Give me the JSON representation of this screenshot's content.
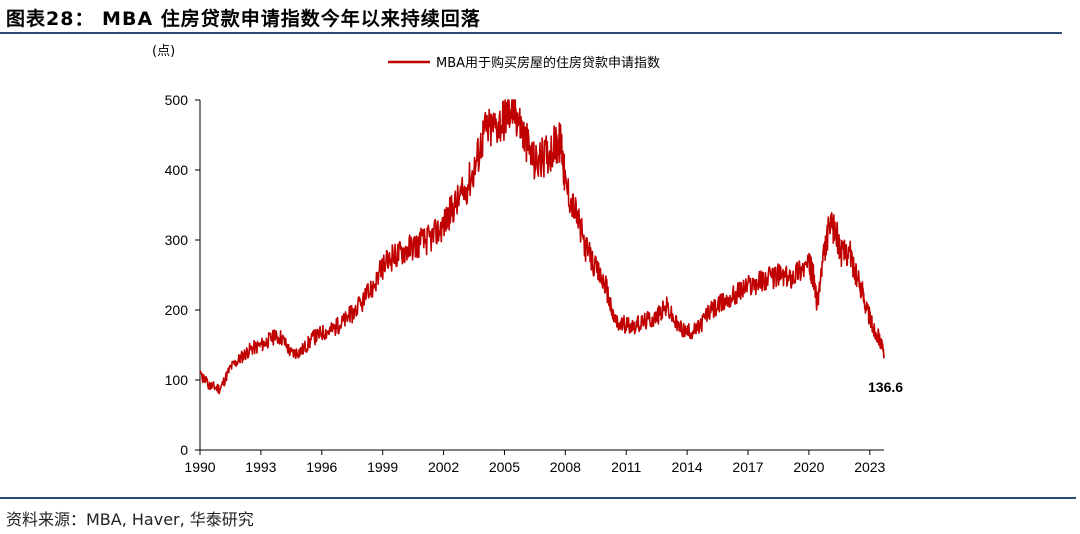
{
  "header": {
    "title": "图表28： MBA 住房贷款申请指数今年以来持续回落"
  },
  "footer": {
    "source": "资料来源：MBA, Haver, 华泰研究"
  },
  "chart_data": {
    "type": "line",
    "title": "",
    "unit_label": "(点)",
    "xlabel": "",
    "ylabel": "",
    "xlim": [
      1990,
      2023.7
    ],
    "ylim": [
      0,
      500
    ],
    "x_ticks": [
      "1990",
      "1993",
      "1996",
      "1999",
      "2002",
      "2005",
      "2008",
      "2011",
      "2014",
      "2017",
      "2020",
      "2023"
    ],
    "y_ticks": [
      "0",
      "100",
      "200",
      "300",
      "400",
      "500"
    ],
    "grid": false,
    "legend_position": "top-center",
    "series": [
      {
        "name": "MBA用于购买房屋的住房贷款申请指数",
        "color": "#c00000",
        "x": [
          1990.0,
          1990.5,
          1991.0,
          1991.5,
          1992.0,
          1992.5,
          1993.0,
          1993.5,
          1994.0,
          1994.5,
          1995.0,
          1995.5,
          1996.0,
          1996.5,
          1997.0,
          1997.5,
          1998.0,
          1998.5,
          1999.0,
          1999.5,
          2000.0,
          2000.5,
          2001.0,
          2001.5,
          2002.0,
          2002.5,
          2003.0,
          2003.5,
          2004.0,
          2004.5,
          2005.0,
          2005.3,
          2005.6,
          2006.0,
          2006.5,
          2007.0,
          2007.5,
          2007.8,
          2008.0,
          2008.5,
          2009.0,
          2009.5,
          2010.0,
          2010.3,
          2010.6,
          2011.0,
          2011.5,
          2012.0,
          2012.5,
          2013.0,
          2013.5,
          2014.0,
          2014.5,
          2015.0,
          2015.5,
          2016.0,
          2016.5,
          2017.0,
          2017.5,
          2018.0,
          2018.5,
          2019.0,
          2019.5,
          2020.0,
          2020.2,
          2020.4,
          2020.7,
          2021.0,
          2021.3,
          2021.6,
          2022.0,
          2022.3,
          2022.6,
          2022.9,
          2023.2,
          2023.5,
          2023.7
        ],
        "values": [
          105,
          92,
          88,
          118,
          132,
          145,
          150,
          160,
          162,
          138,
          142,
          158,
          168,
          172,
          182,
          195,
          210,
          232,
          262,
          275,
          285,
          292,
          298,
          305,
          322,
          348,
          368,
          400,
          455,
          462,
          475,
          490,
          480,
          445,
          410,
          420,
          435,
          440,
          380,
          340,
          290,
          258,
          235,
          195,
          178,
          180,
          178,
          185,
          190,
          205,
          178,
          168,
          172,
          195,
          205,
          215,
          225,
          235,
          240,
          245,
          250,
          245,
          258,
          265,
          250,
          208,
          272,
          318,
          315,
          280,
          285,
          250,
          230,
          198,
          172,
          158,
          136.6
        ]
      }
    ],
    "annotations": [
      {
        "text": "136.6",
        "x": 2023.7,
        "y": 136.6
      }
    ]
  }
}
